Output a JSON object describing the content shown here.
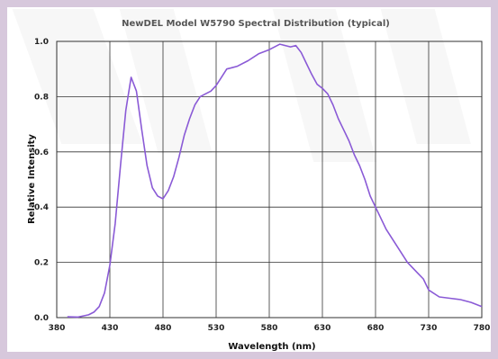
{
  "chart_data": {
    "type": "line",
    "title": "NewDEL Model W5790 Spectral Distribution (typical)",
    "xlabel": "Wavelength (nm)",
    "ylabel": "Relative Intensity",
    "xlim": [
      380,
      780
    ],
    "ylim": [
      0,
      1.0
    ],
    "xticks": [
      380,
      430,
      480,
      530,
      580,
      630,
      680,
      730,
      780
    ],
    "yticks": [
      0.0,
      0.2,
      0.4,
      0.6,
      0.8,
      1.0
    ],
    "xtick_labels": [
      "380",
      "430",
      "480",
      "530",
      "580",
      "630",
      "680",
      "730",
      "780"
    ],
    "ytick_labels": [
      "0.0",
      "0.2",
      "0.4",
      "0.6",
      "0.8",
      "1.0"
    ],
    "grid": true,
    "line_color": "#8a5ad6",
    "series": [
      {
        "x": [
          390,
          400,
          410,
          415,
          420,
          425,
          430,
          435,
          440,
          445,
          450,
          455,
          460,
          465,
          470,
          475,
          480,
          485,
          490,
          495,
          500,
          505,
          510,
          515,
          520,
          525,
          530,
          535,
          540,
          545,
          550,
          560,
          570,
          580,
          590,
          595,
          600,
          605,
          610,
          615,
          620,
          625,
          630,
          635,
          640,
          645,
          650,
          655,
          660,
          665,
          670,
          675,
          680,
          690,
          700,
          710,
          720,
          725,
          730,
          740,
          750,
          760,
          770,
          780
        ],
        "y": [
          0.003,
          0.002,
          0.01,
          0.02,
          0.04,
          0.09,
          0.19,
          0.34,
          0.55,
          0.75,
          0.87,
          0.82,
          0.68,
          0.55,
          0.47,
          0.44,
          0.43,
          0.46,
          0.51,
          0.58,
          0.66,
          0.72,
          0.77,
          0.8,
          0.81,
          0.82,
          0.84,
          0.87,
          0.9,
          0.905,
          0.91,
          0.93,
          0.955,
          0.97,
          0.99,
          0.985,
          0.98,
          0.985,
          0.96,
          0.92,
          0.88,
          0.845,
          0.83,
          0.81,
          0.77,
          0.72,
          0.68,
          0.64,
          0.59,
          0.55,
          0.5,
          0.44,
          0.4,
          0.32,
          0.26,
          0.2,
          0.16,
          0.14,
          0.1,
          0.075,
          0.07,
          0.065,
          0.055,
          0.04
        ]
      }
    ]
  }
}
